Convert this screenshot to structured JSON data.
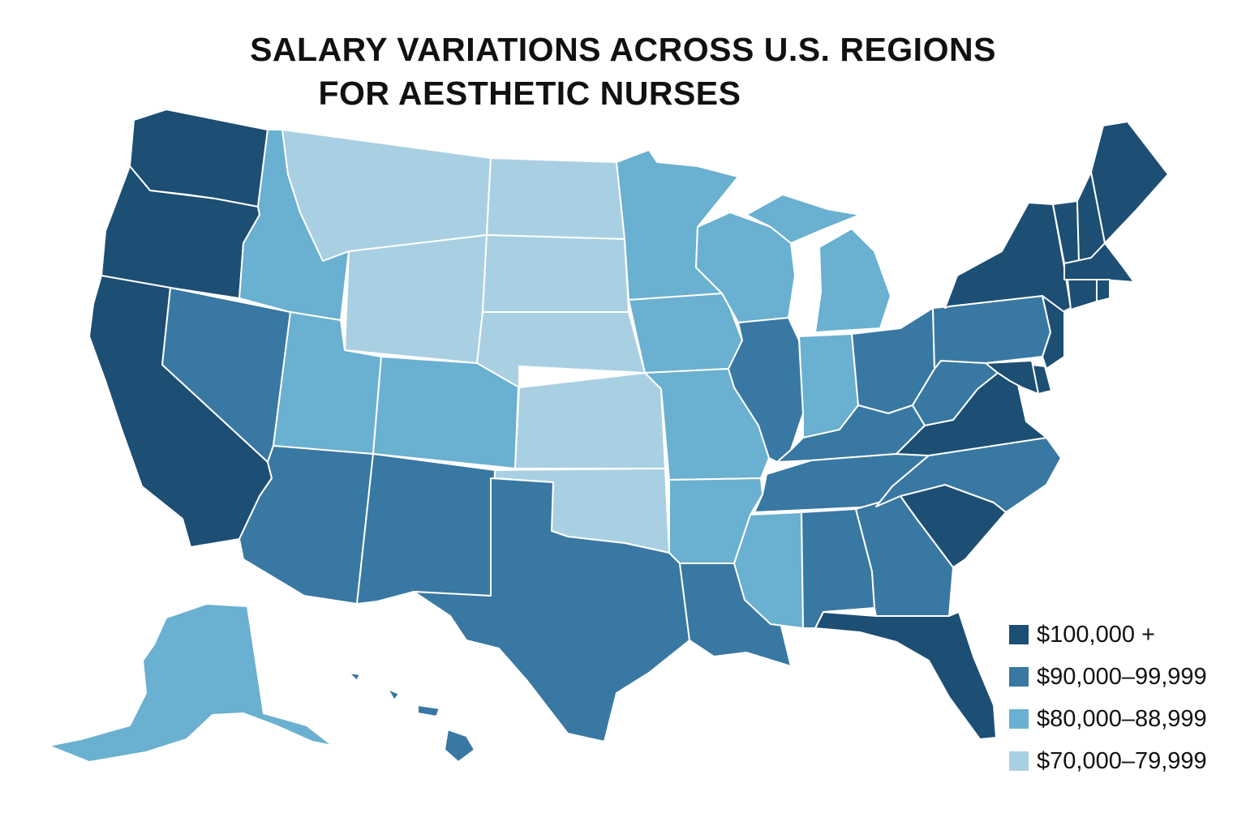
{
  "title": {
    "line1": "SALARY VARIATIONS ACROSS U.S. REGIONS",
    "line2": "FOR AESTHETIC NURSES"
  },
  "colors": {
    "tier1": "#1d4e74",
    "tier2": "#3878a2",
    "tier3": "#6ab0d0",
    "tier4": "#a9d0e2",
    "background": "#ffffff",
    "border": "#ffffff"
  },
  "legend": [
    {
      "label": "$100,000 +",
      "tier": "tier1"
    },
    {
      "label": "$90,000–99,999",
      "tier": "tier2"
    },
    {
      "label": "$80,000–88,999",
      "tier": "tier3"
    },
    {
      "label": "$70,000–79,999",
      "tier": "tier4"
    }
  ],
  "map_data": {
    "tier1": [
      "Washington",
      "Oregon",
      "California",
      "Florida",
      "South Carolina",
      "Virginia",
      "New York",
      "Maine",
      "Vermont",
      "New Hampshire",
      "Massachusetts",
      "Connecticut",
      "Rhode Island",
      "New Jersey",
      "Maryland",
      "Delaware"
    ],
    "tier2": [
      "Nevada",
      "Arizona",
      "New Mexico",
      "Texas",
      "Louisiana",
      "Alabama",
      "Georgia",
      "North Carolina",
      "Tennessee",
      "Kentucky",
      "Ohio",
      "West Virginia",
      "Pennsylvania",
      "Illinois",
      "Hawaii"
    ],
    "tier3": [
      "Idaho",
      "Utah",
      "Colorado",
      "Minnesota",
      "Iowa",
      "Wisconsin",
      "Michigan",
      "Indiana",
      "Missouri",
      "Arkansas",
      "Mississippi",
      "Alaska"
    ],
    "tier4": [
      "Montana",
      "Wyoming",
      "North Dakota",
      "South Dakota",
      "Nebraska",
      "Kansas",
      "Oklahoma"
    ]
  }
}
